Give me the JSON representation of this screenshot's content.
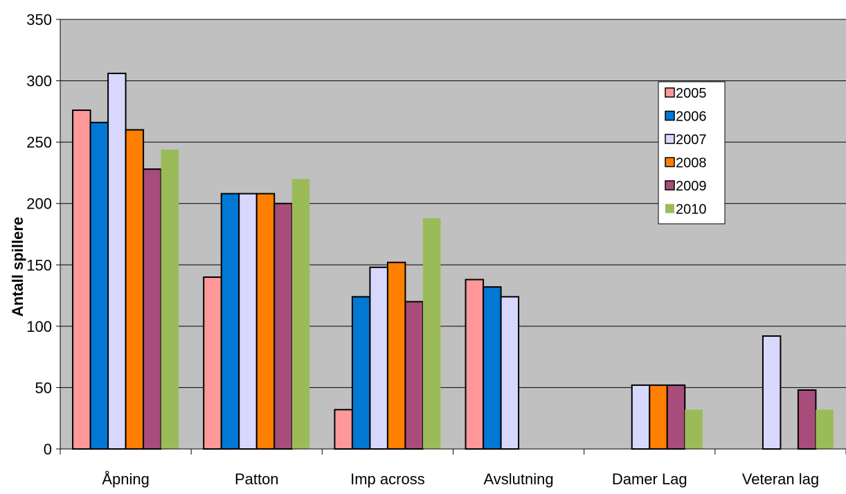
{
  "chart_data": {
    "type": "bar",
    "ylabel": "Antall spillere",
    "ylim": [
      0,
      350
    ],
    "yticks": [
      0,
      50,
      100,
      150,
      200,
      250,
      300,
      350
    ],
    "ytick_labels": [
      "0",
      "50",
      "100",
      "150",
      "200",
      "250",
      "300",
      "350"
    ],
    "categories": [
      "Åpning",
      "Patton",
      "Imp across",
      "Avslutning",
      "Damer Lag",
      "Veteran lag"
    ],
    "series": [
      {
        "name": "2005",
        "color": "#FF9999",
        "values": [
          276,
          140,
          32,
          138,
          0,
          0
        ]
      },
      {
        "name": "2006",
        "color": "#0078D4",
        "values": [
          266,
          208,
          124,
          132,
          0,
          0
        ]
      },
      {
        "name": "2007",
        "color": "#D8D8FF",
        "values": [
          306,
          208,
          148,
          124,
          52,
          92
        ]
      },
      {
        "name": "2008",
        "color": "#FF7F00",
        "values": [
          260,
          208,
          152,
          0,
          52,
          0
        ]
      },
      {
        "name": "2009",
        "color": "#A84C7C",
        "values": [
          228,
          200,
          120,
          0,
          52,
          48
        ]
      },
      {
        "name": "2010",
        "color": "#9BBB59",
        "values": [
          244,
          220,
          188,
          0,
          32,
          32
        ]
      }
    ],
    "plot_background": "#C0C0C0",
    "grid": true,
    "legend_position": "top-right"
  }
}
